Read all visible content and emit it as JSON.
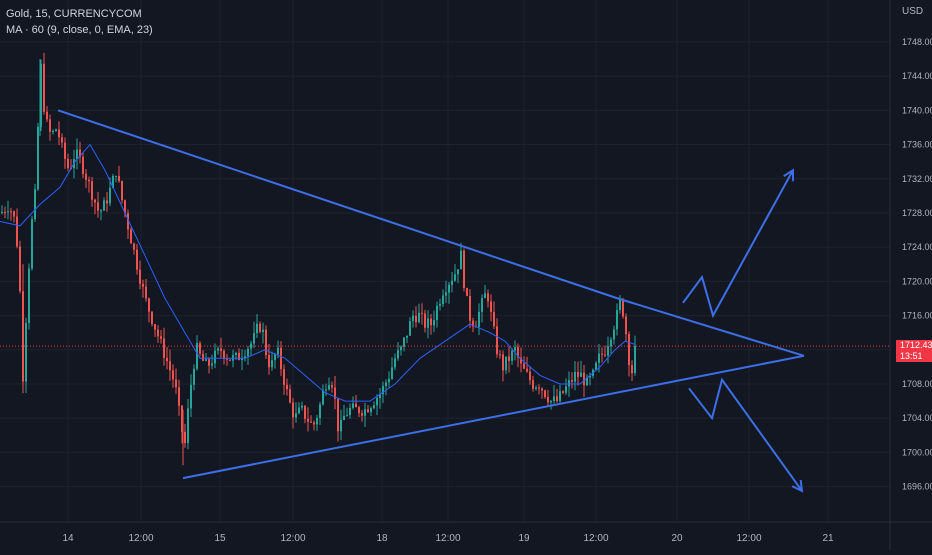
{
  "header": {
    "symbol_line": "Gold, 15, CURRENCYCOM",
    "indicator_line": "MA · 60 (9, close, 0, EMA, 23)",
    "currency": "USD"
  },
  "price_label": {
    "price": "1712.43",
    "countdown": "13:51",
    "color": "#f23645"
  },
  "colors": {
    "background": "#131722",
    "up": "#26a69a",
    "down": "#ef5350",
    "ma": "#2962ff",
    "drawing": "#3d6fe8",
    "grid": "#1e222d",
    "price_line": "#f23645"
  },
  "chart_data": {
    "type": "candlestick",
    "title": "Gold, 15, CURRENCYCOM",
    "ylabel": "USD",
    "ylim": [
      1693.5,
      1751.5
    ],
    "yticks": [
      1696,
      1700,
      1704,
      1708,
      1712,
      1716,
      1720,
      1724,
      1728,
      1732,
      1736,
      1740,
      1744,
      1748
    ],
    "xtick_labels": [
      "14",
      "12:00",
      "15",
      "12:00",
      "18",
      "12:00",
      "19",
      "12:00",
      "20",
      "12:00",
      "21"
    ],
    "grid": true,
    "last_price": 1712.43,
    "price_path": [
      [
        0,
        1728
      ],
      [
        8,
        1729
      ],
      [
        14,
        1727
      ],
      [
        18,
        1722
      ],
      [
        22,
        1709
      ],
      [
        26,
        1718
      ],
      [
        30,
        1726
      ],
      [
        34,
        1730
      ],
      [
        37,
        1738
      ],
      [
        40,
        1745
      ],
      [
        44,
        1739
      ],
      [
        50,
        1737
      ],
      [
        56,
        1738
      ],
      [
        62,
        1735
      ],
      [
        68,
        1733
      ],
      [
        74,
        1735
      ],
      [
        80,
        1734
      ],
      [
        86,
        1732
      ],
      [
        92,
        1730
      ],
      [
        98,
        1728
      ],
      [
        104,
        1729
      ],
      [
        110,
        1731
      ],
      [
        115,
        1733
      ],
      [
        120,
        1730
      ],
      [
        126,
        1727
      ],
      [
        132,
        1724
      ],
      [
        138,
        1721
      ],
      [
        144,
        1718
      ],
      [
        150,
        1716
      ],
      [
        156,
        1714
      ],
      [
        162,
        1712
      ],
      [
        168,
        1710
      ],
      [
        174,
        1708
      ],
      [
        180,
        1703
      ],
      [
        184,
        1701
      ],
      [
        188,
        1706
      ],
      [
        192,
        1710
      ],
      [
        196,
        1712
      ],
      [
        200,
        1711
      ],
      [
        206,
        1710
      ],
      [
        212,
        1711
      ],
      [
        220,
        1712
      ],
      [
        228,
        1711
      ],
      [
        236,
        1711
      ],
      [
        244,
        1712
      ],
      [
        252,
        1713
      ],
      [
        258,
        1715
      ],
      [
        262,
        1714
      ],
      [
        266,
        1711
      ],
      [
        270,
        1710
      ],
      [
        276,
        1712
      ],
      [
        282,
        1709
      ],
      [
        288,
        1706
      ],
      [
        294,
        1704
      ],
      [
        300,
        1705
      ],
      [
        306,
        1704
      ],
      [
        312,
        1703
      ],
      [
        318,
        1705
      ],
      [
        324,
        1708
      ],
      [
        330,
        1709
      ],
      [
        334,
        1706
      ],
      [
        338,
        1702
      ],
      [
        342,
        1704
      ],
      [
        348,
        1705
      ],
      [
        356,
        1705
      ],
      [
        364,
        1705
      ],
      [
        372,
        1706
      ],
      [
        380,
        1707
      ],
      [
        388,
        1709
      ],
      [
        394,
        1711
      ],
      [
        400,
        1712
      ],
      [
        406,
        1714
      ],
      [
        412,
        1716
      ],
      [
        418,
        1716
      ],
      [
        424,
        1715
      ],
      [
        430,
        1715
      ],
      [
        436,
        1717
      ],
      [
        442,
        1719
      ],
      [
        448,
        1720
      ],
      [
        454,
        1721
      ],
      [
        460,
        1723
      ],
      [
        464,
        1719
      ],
      [
        468,
        1716
      ],
      [
        474,
        1715
      ],
      [
        480,
        1717
      ],
      [
        486,
        1719
      ],
      [
        490,
        1716
      ],
      [
        496,
        1712
      ],
      [
        502,
        1710
      ],
      [
        508,
        1711
      ],
      [
        514,
        1712
      ],
      [
        520,
        1710
      ],
      [
        526,
        1709
      ],
      [
        532,
        1708
      ],
      [
        538,
        1708
      ],
      [
        544,
        1707
      ],
      [
        550,
        1706
      ],
      [
        556,
        1706
      ],
      [
        562,
        1707
      ],
      [
        568,
        1708
      ],
      [
        574,
        1709
      ],
      [
        580,
        1709
      ],
      [
        586,
        1708
      ],
      [
        592,
        1709
      ],
      [
        598,
        1711
      ],
      [
        604,
        1712
      ],
      [
        610,
        1714
      ],
      [
        616,
        1716
      ],
      [
        620,
        1718
      ],
      [
        624,
        1715
      ],
      [
        628,
        1711
      ],
      [
        632,
        1709
      ],
      [
        636,
        1712.43
      ]
    ],
    "ma_path": [
      [
        0,
        1727
      ],
      [
        20,
        1726.5
      ],
      [
        40,
        1729
      ],
      [
        60,
        1731
      ],
      [
        75,
        1734
      ],
      [
        90,
        1736
      ],
      [
        105,
        1733
      ],
      [
        125,
        1728
      ],
      [
        145,
        1723
      ],
      [
        165,
        1718
      ],
      [
        185,
        1714
      ],
      [
        200,
        1711
      ],
      [
        220,
        1711
      ],
      [
        245,
        1711
      ],
      [
        265,
        1712
      ],
      [
        285,
        1711
      ],
      [
        305,
        1709
      ],
      [
        325,
        1707
      ],
      [
        345,
        1706
      ],
      [
        370,
        1706
      ],
      [
        395,
        1708
      ],
      [
        420,
        1711
      ],
      [
        445,
        1713
      ],
      [
        470,
        1715
      ],
      [
        490,
        1714
      ],
      [
        505,
        1713
      ],
      [
        520,
        1711
      ],
      [
        540,
        1709
      ],
      [
        560,
        1708
      ],
      [
        580,
        1708
      ],
      [
        600,
        1710
      ],
      [
        615,
        1712
      ],
      [
        625,
        1713
      ],
      [
        636,
        1712.6
      ]
    ],
    "drawings": {
      "triangle_upper": [
        [
          58,
          1740
        ],
        [
          618,
          1718
        ],
        [
          804,
          1711.3
        ]
      ],
      "triangle_lower": [
        [
          183,
          1697
        ],
        [
          804,
          1711.3
        ]
      ],
      "arrow_up": [
        [
          683,
          1717.5
        ],
        [
          702,
          1720.5
        ],
        [
          713,
          1716
        ],
        [
          793,
          1733
        ]
      ],
      "arrow_down": [
        [
          689,
          1707.5
        ],
        [
          712,
          1704
        ],
        [
          722,
          1708.5
        ],
        [
          802,
          1695.5
        ]
      ]
    }
  }
}
